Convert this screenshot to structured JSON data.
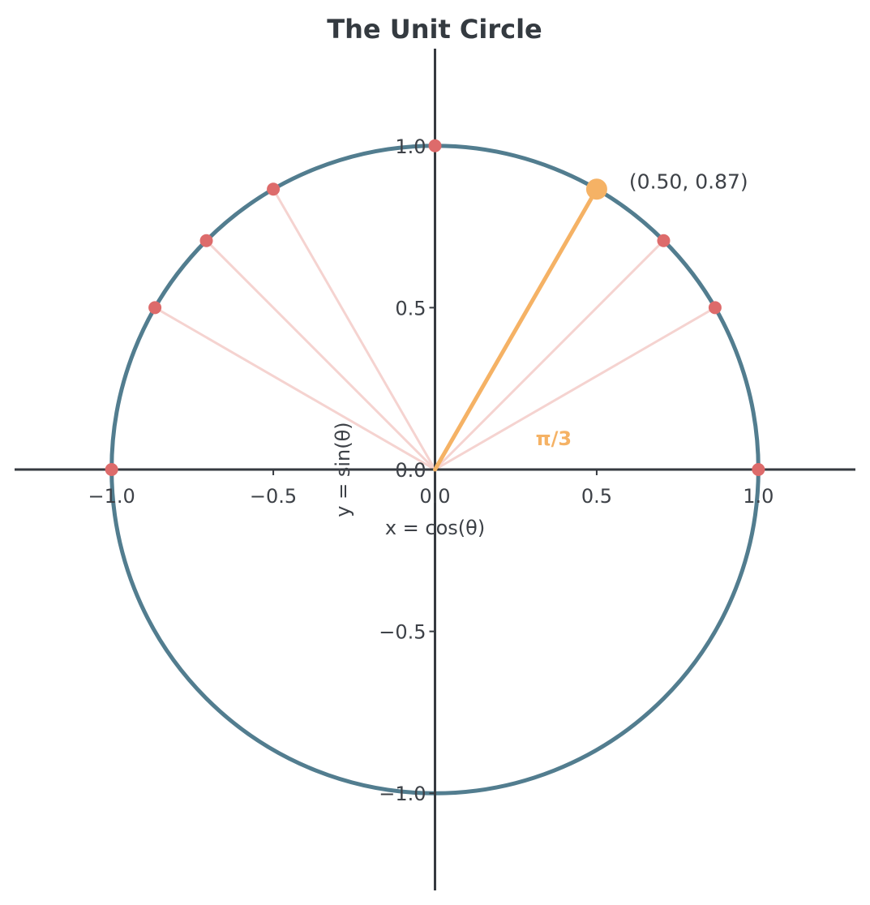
{
  "chart_data": {
    "type": "scatter",
    "title": "The Unit Circle",
    "xlabel": "x = cos(θ)",
    "ylabel": "y = sin(θ)",
    "xlim": [
      -1.3,
      1.3
    ],
    "ylim": [
      -1.3,
      1.3
    ],
    "x_ticks": [
      -1.0,
      -0.5,
      0.0,
      0.5,
      1.0
    ],
    "x_tick_labels": [
      "−1.0",
      "−0.5",
      "0.0",
      "0.5",
      "1.0"
    ],
    "y_ticks": [
      -1.0,
      -0.5,
      0.0,
      0.5,
      1.0
    ],
    "y_tick_labels": [
      "−1.0",
      "−0.5",
      "0.0",
      "0.5",
      "1.0"
    ],
    "grid": false,
    "circle": {
      "radius": 1,
      "color": "#527d8f"
    },
    "angle_points": [
      {
        "x": 1.0,
        "y": 0.0
      },
      {
        "x": 0.866,
        "y": 0.5
      },
      {
        "x": 0.707,
        "y": 0.707
      },
      {
        "x": 0.0,
        "y": 1.0
      },
      {
        "x": -0.5,
        "y": 0.866
      },
      {
        "x": -0.707,
        "y": 0.707
      },
      {
        "x": -0.866,
        "y": 0.5
      },
      {
        "x": -1.0,
        "y": 0.0
      }
    ],
    "radial_line_points": [
      {
        "x": 0.866,
        "y": 0.5
      },
      {
        "x": 0.707,
        "y": 0.707
      },
      {
        "x": -0.5,
        "y": 0.866
      },
      {
        "x": -0.707,
        "y": 0.707
      },
      {
        "x": -0.866,
        "y": 0.5
      }
    ],
    "highlight": {
      "x": 0.5,
      "y": 0.866,
      "coord_label": "(0.50, 0.87)",
      "angle_label": "π/3",
      "color": "#f5b265"
    },
    "colors": {
      "point": "#dd6b6b",
      "radial_line": "#f5d3d0",
      "axis": "#363a40",
      "text": "#3d4147"
    }
  }
}
